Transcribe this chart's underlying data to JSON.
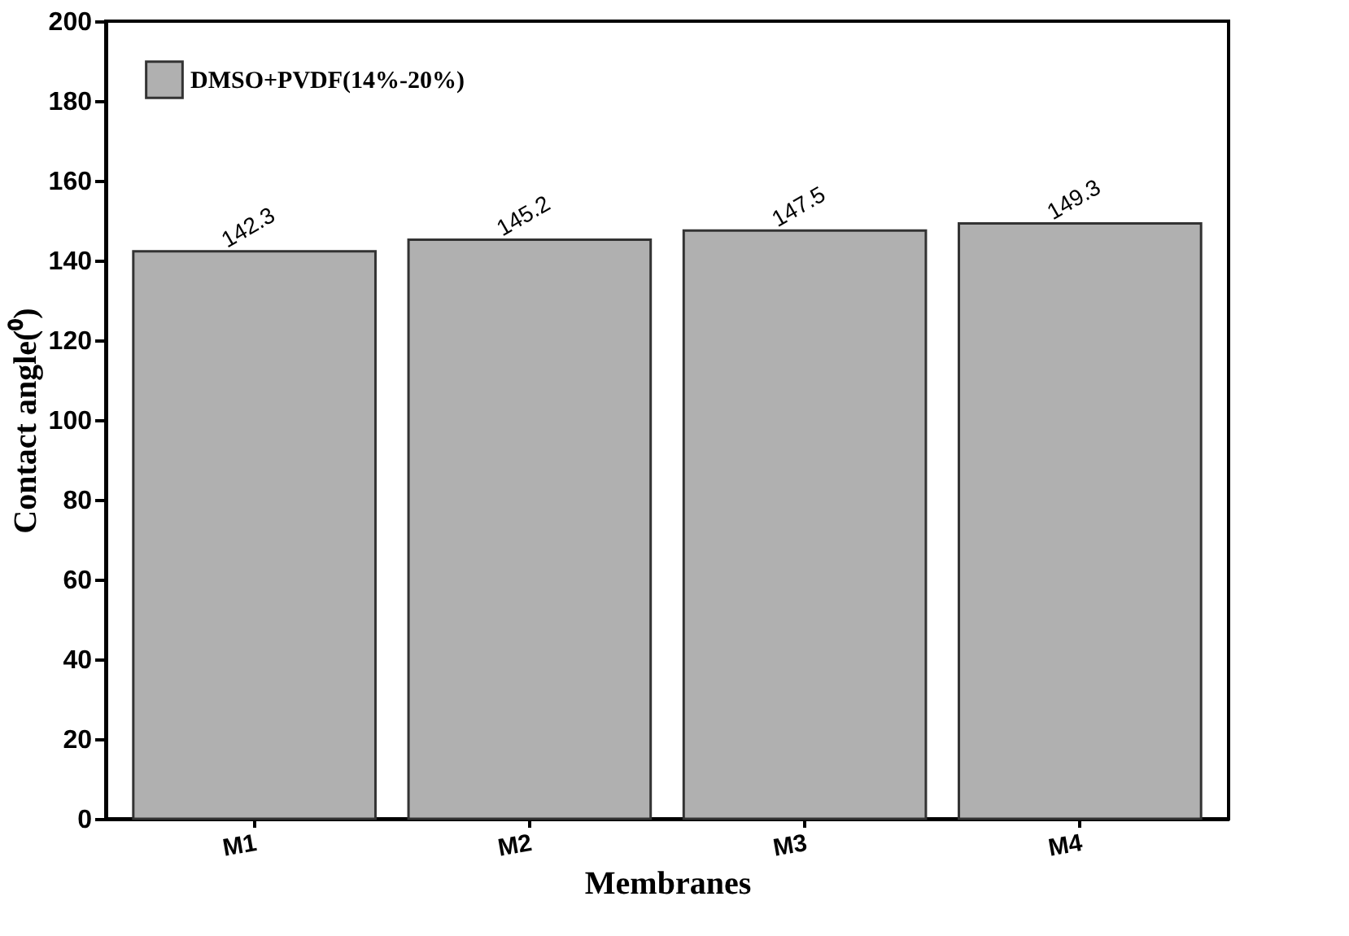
{
  "chart_data": {
    "type": "bar",
    "xlabel": "Membranes",
    "ylabel": "Contact angle(⁰)",
    "categories": [
      "M1",
      "M2",
      "M3",
      "M4"
    ],
    "series": [
      {
        "name": "DMSO+PVDF(14%-20%)",
        "color": "#b0b0b0",
        "values": [
          142.3,
          145.2,
          147.5,
          149.3
        ]
      }
    ],
    "ylim": [
      0,
      200
    ],
    "yticks": [
      0,
      20,
      40,
      60,
      80,
      100,
      120,
      140,
      160,
      180,
      200
    ],
    "data_labels": true,
    "legend": "top left",
    "grid": false
  }
}
